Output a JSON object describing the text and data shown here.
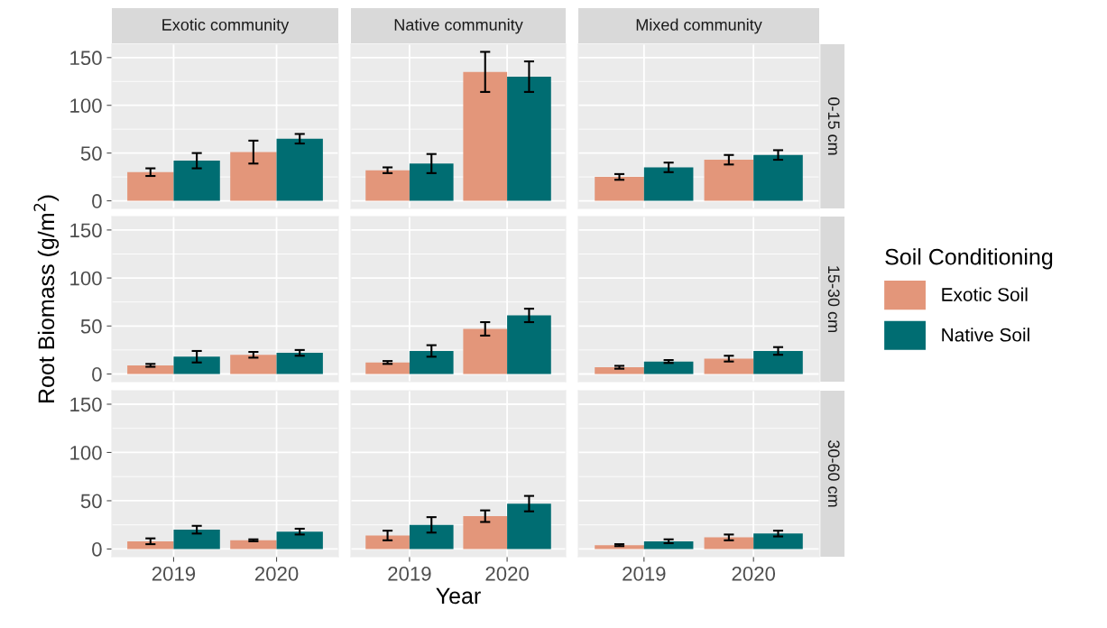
{
  "chart_data": [
    {
      "type": "bar",
      "title": "Exotic community",
      "categories": [
        "2019",
        "2020"
      ],
      "ylim": [
        -8,
        164
      ],
      "yticks": [
        0,
        50,
        100,
        150
      ],
      "grid": true,
      "tick_labels": "y",
      "series": [
        {
          "color": "#e3967a",
          "values": [
            30,
            51
          ],
          "errors": [
            4,
            12
          ]
        },
        {
          "color": "#006d72",
          "values": [
            42,
            65
          ],
          "errors": [
            8,
            5
          ]
        }
      ]
    },
    {
      "type": "bar",
      "title": "Native community",
      "categories": [
        "2019",
        "2020"
      ],
      "ylim": [
        -8,
        164
      ],
      "yticks": [
        0,
        50,
        100,
        150
      ],
      "grid": true,
      "tick_labels": false,
      "series": [
        {
          "color": "#e3967a",
          "values": [
            32,
            135
          ],
          "errors": [
            3,
            21
          ]
        },
        {
          "color": "#006d72",
          "values": [
            39,
            130
          ],
          "errors": [
            10,
            16
          ]
        }
      ]
    },
    {
      "type": "bar",
      "title": "Mixed community",
      "annotations": [
        "0-15 cm"
      ],
      "categories": [
        "2019",
        "2020"
      ],
      "ylim": [
        -8,
        164
      ],
      "yticks": [
        0,
        50,
        100,
        150
      ],
      "grid": true,
      "tick_labels": false,
      "series": [
        {
          "color": "#e3967a",
          "values": [
            25,
            43
          ],
          "errors": [
            3,
            5
          ]
        },
        {
          "color": "#006d72",
          "values": [
            35,
            48
          ],
          "errors": [
            5,
            5
          ]
        }
      ]
    },
    {
      "type": "bar",
      "ylabel": "Root Biomass (g/m$^{2}$)",
      "categories": [
        "2019",
        "2020"
      ],
      "ylim": [
        -8,
        164
      ],
      "yticks": [
        0,
        50,
        100,
        150
      ],
      "grid": true,
      "tick_labels": "y",
      "series": [
        {
          "color": "#e3967a",
          "values": [
            9,
            20
          ],
          "errors": [
            1.5,
            3
          ]
        },
        {
          "color": "#006d72",
          "values": [
            18,
            22
          ],
          "errors": [
            6,
            3
          ]
        }
      ]
    },
    {
      "type": "bar",
      "categories": [
        "2019",
        "2020"
      ],
      "ylim": [
        -8,
        164
      ],
      "yticks": [
        0,
        50,
        100,
        150
      ],
      "grid": true,
      "tick_labels": false,
      "series": [
        {
          "color": "#e3967a",
          "values": [
            12,
            47
          ],
          "errors": [
            1.5,
            7
          ]
        },
        {
          "color": "#006d72",
          "values": [
            24,
            61
          ],
          "errors": [
            6,
            7
          ]
        }
      ]
    },
    {
      "type": "bar",
      "annotations": [
        "15-30 cm"
      ],
      "legend": "right",
      "legend_title": "Soil Conditioning",
      "categories": [
        "2019",
        "2020"
      ],
      "ylim": [
        -8,
        164
      ],
      "yticks": [
        0,
        50,
        100,
        150
      ],
      "grid": true,
      "tick_labels": false,
      "series": [
        {
          "name": "Exotic Soil",
          "color": "#e3967a",
          "values": [
            7,
            16
          ],
          "errors": [
            1.5,
            3
          ]
        },
        {
          "name": "Native Soil",
          "color": "#006d72",
          "values": [
            13,
            24
          ],
          "errors": [
            1.5,
            4
          ]
        }
      ]
    },
    {
      "type": "bar",
      "categories": [
        "2019",
        "2020"
      ],
      "ylim": [
        -8,
        164
      ],
      "yticks": [
        0,
        50,
        100,
        150
      ],
      "grid": true,
      "series": [
        {
          "color": "#e3967a",
          "values": [
            8,
            9
          ],
          "errors": [
            3,
            1
          ]
        },
        {
          "color": "#006d72",
          "values": [
            20,
            18
          ],
          "errors": [
            4,
            3
          ]
        }
      ]
    },
    {
      "type": "bar",
      "xlabel": "Year",
      "categories": [
        "2019",
        "2020"
      ],
      "ylim": [
        -8,
        164
      ],
      "yticks": [
        0,
        50,
        100,
        150
      ],
      "grid": true,
      "tick_labels": "x",
      "series": [
        {
          "color": "#e3967a",
          "values": [
            14,
            34
          ],
          "errors": [
            5,
            6
          ]
        },
        {
          "color": "#006d72",
          "values": [
            25,
            47
          ],
          "errors": [
            8,
            8
          ]
        }
      ]
    },
    {
      "type": "bar",
      "annotations": [
        "30-60 cm"
      ],
      "categories": [
        "2019",
        "2020"
      ],
      "ylim": [
        -8,
        164
      ],
      "yticks": [
        0,
        50,
        100,
        150
      ],
      "grid": true,
      "tick_labels": "x",
      "series": [
        {
          "color": "#e3967a",
          "values": [
            4,
            12
          ],
          "errors": [
            1,
            3
          ]
        },
        {
          "color": "#006d72",
          "values": [
            8,
            16
          ],
          "errors": [
            2,
            3
          ]
        }
      ]
    }
  ]
}
